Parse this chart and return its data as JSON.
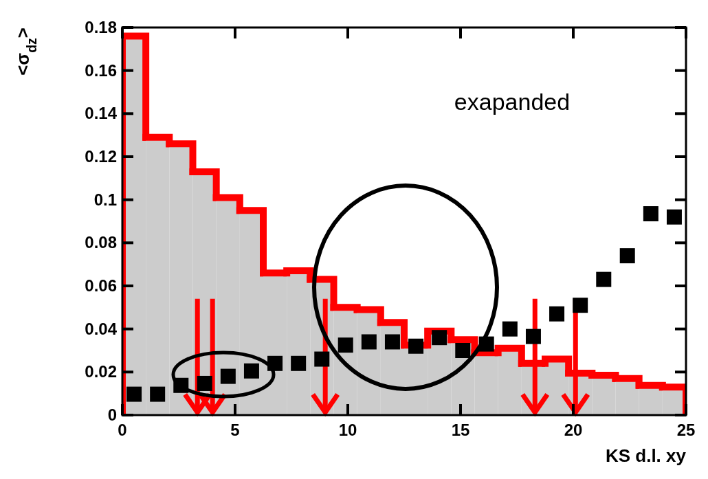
{
  "chart_data": {
    "type": "histogram",
    "xlabel": "KS d.l. xy",
    "ylabel": "<σ$_{dz}$>",
    "annotations": [
      "exapanded"
    ],
    "xlim": [
      0,
      25
    ],
    "xticks": [
      0,
      5,
      10,
      15,
      20,
      25
    ],
    "ylim": [
      0,
      0.18
    ],
    "yticks": [
      0,
      0.02,
      0.04,
      0.06,
      0.08,
      0.1,
      0.12,
      0.14,
      0.16,
      0.18
    ],
    "grid": false,
    "marker": "square",
    "series": [
      {
        "type": "histogram",
        "color": "#cccccc",
        "bins": [
          0,
          1.0417,
          2.0833,
          3.125,
          4.1667,
          5.2083,
          6.25,
          7.2917,
          8.3333,
          9.375,
          10.4167,
          11.4583,
          12.5,
          13.5417,
          14.5833,
          15.625,
          16.6667,
          17.7083,
          18.75,
          19.7917,
          20.8333,
          21.875,
          22.9167,
          23.9583,
          25
        ],
        "values": [
          0.176,
          0.129,
          0.126,
          0.113,
          0.101,
          0.095,
          0.066,
          0.067,
          0.063,
          0.05,
          0.049,
          0.043,
          0.0325,
          0.039,
          0.035,
          0.029,
          0.031,
          0.024,
          0.026,
          0.0195,
          0.0185,
          0.017,
          0.0138,
          0.013
        ]
      },
      {
        "type": "scatter",
        "color": "#000000",
        "x": [
          0.52,
          1.56,
          2.6,
          3.65,
          4.69,
          5.73,
          6.77,
          7.81,
          8.85,
          9.9,
          10.94,
          11.98,
          13.02,
          14.06,
          15.1,
          16.15,
          17.19,
          18.23,
          19.27,
          20.31,
          21.35,
          22.4,
          23.44,
          24.48
        ],
        "values": [
          0.0097,
          0.0097,
          0.0138,
          0.0147,
          0.018,
          0.0205,
          0.024,
          0.024,
          0.026,
          0.0325,
          0.034,
          0.034,
          0.032,
          0.036,
          0.03,
          0.033,
          0.04,
          0.0365,
          0.047,
          0.051,
          0.063,
          0.074,
          0.0935,
          0.092
        ]
      }
    ]
  }
}
